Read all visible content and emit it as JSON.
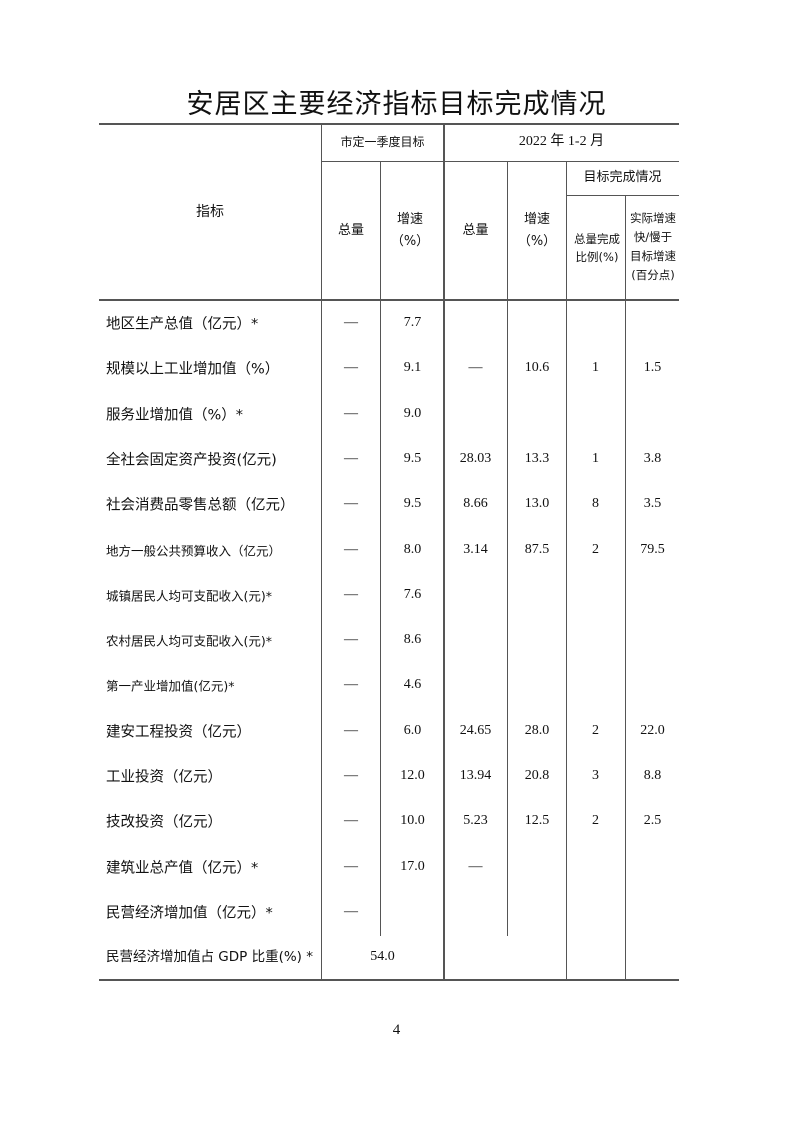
{
  "title": "安居区主要经济指标目标完成情况",
  "header": {
    "indicator": "指标",
    "city_target": "市定一季度目标",
    "period": "2022 年 1-2 月",
    "target_completion": "目标完成情况",
    "total": "总量",
    "growth": "增速（%）",
    "total2": "总量",
    "growth2": "增速（%）",
    "ratio": "总量完成比例(%)",
    "diff": "实际增速快/慢于目标增速(百分点)"
  },
  "rows": [
    {
      "label": "地区生产总值（亿元）*",
      "t_total": "—",
      "t_growth": "7.7",
      "a_total": "",
      "a_growth": "",
      "ratio": "",
      "diff": ""
    },
    {
      "label": "规模以上工业增加值（%）",
      "t_total": "—",
      "t_growth": "9.1",
      "a_total": "—",
      "a_growth": "10.6",
      "ratio": "1",
      "diff": "1.5"
    },
    {
      "label": "服务业增加值（%）*",
      "t_total": "—",
      "t_growth": "9.0",
      "a_total": "",
      "a_growth": "",
      "ratio": "",
      "diff": ""
    },
    {
      "label": "全社会固定资产投资(亿元)",
      "t_total": "—",
      "t_growth": "9.5",
      "a_total": "28.03",
      "a_growth": "13.3",
      "ratio": "1",
      "diff": "3.8"
    },
    {
      "label": "社会消费品零售总额（亿元）",
      "t_total": "—",
      "t_growth": "9.5",
      "a_total": "8.66",
      "a_growth": "13.0",
      "ratio": "8",
      "diff": "3.5"
    },
    {
      "label": "地方一般公共预算收入（亿元）",
      "t_total": "—",
      "t_growth": "8.0",
      "a_total": "3.14",
      "a_growth": "87.5",
      "ratio": "2",
      "diff": "79.5"
    },
    {
      "label": "城镇居民人均可支配收入(元)*",
      "t_total": "—",
      "t_growth": "7.6",
      "a_total": "",
      "a_growth": "",
      "ratio": "",
      "diff": ""
    },
    {
      "label": "农村居民人均可支配收入(元)*",
      "t_total": "—",
      "t_growth": "8.6",
      "a_total": "",
      "a_growth": "",
      "ratio": "",
      "diff": ""
    },
    {
      "label": "第一产业增加值(亿元)*",
      "t_total": "—",
      "t_growth": "4.6",
      "a_total": "",
      "a_growth": "",
      "ratio": "",
      "diff": ""
    },
    {
      "label": "建安工程投资（亿元）",
      "t_total": "—",
      "t_growth": "6.0",
      "a_total": "24.65",
      "a_growth": "28.0",
      "ratio": "2",
      "diff": "22.0"
    },
    {
      "label": "工业投资（亿元）",
      "t_total": "—",
      "t_growth": "12.0",
      "a_total": "13.94",
      "a_growth": "20.8",
      "ratio": "3",
      "diff": "8.8"
    },
    {
      "label": "技改投资（亿元）",
      "t_total": "—",
      "t_growth": "10.0",
      "a_total": "5.23",
      "a_growth": "12.5",
      "ratio": "2",
      "diff": "2.5"
    },
    {
      "label": "建筑业总产值（亿元）*",
      "t_total": "—",
      "t_growth": "17.0",
      "a_total": "—",
      "a_growth": "",
      "ratio": "",
      "diff": ""
    },
    {
      "label": "民营经济增加值（亿元）*",
      "t_total": "—",
      "t_growth": "",
      "a_total": "",
      "a_growth": "",
      "ratio": "",
      "diff": ""
    }
  ],
  "last_row": {
    "label": "民营经济增加值占 GDP 比重(%) *",
    "target": "54.0"
  },
  "page_number": "4"
}
